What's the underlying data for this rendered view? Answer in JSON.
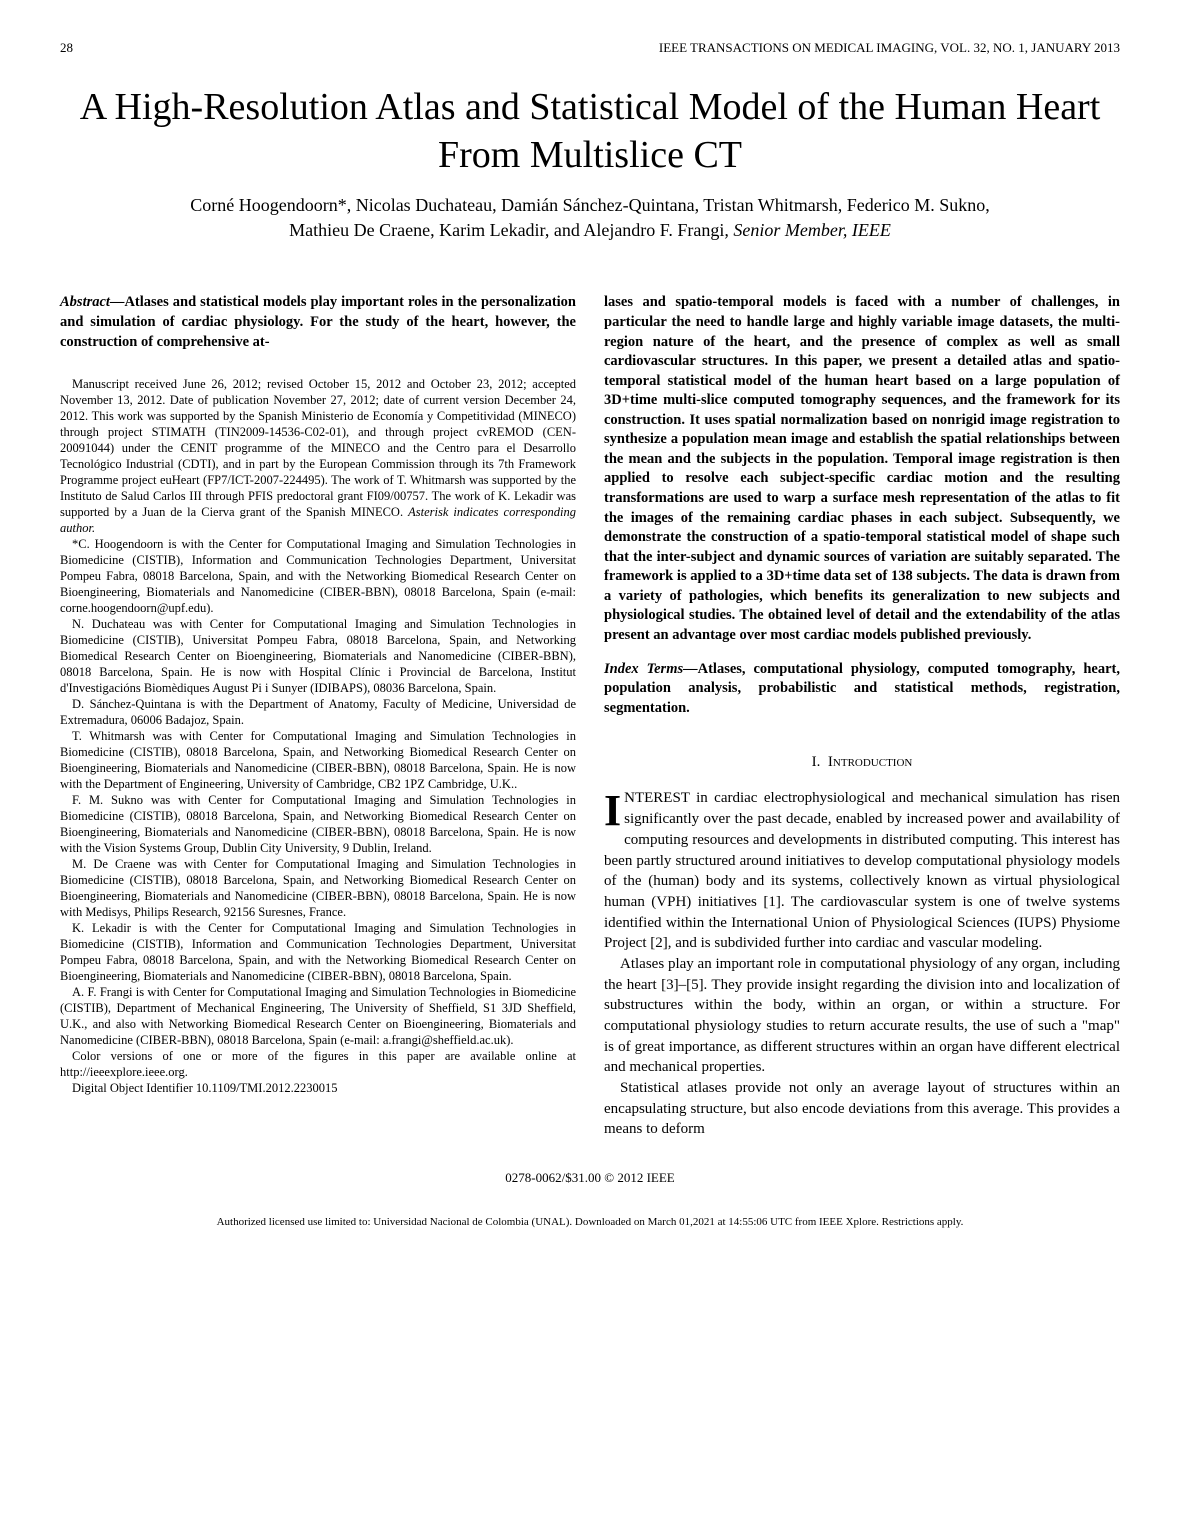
{
  "header": {
    "page_number": "28",
    "journal": "IEEE TRANSACTIONS ON MEDICAL IMAGING, VOL. 32, NO. 1, JANUARY 2013"
  },
  "title": "A High-Resolution Atlas and Statistical Model of the Human Heart From Multislice CT",
  "authors": {
    "line1": "Corné Hoogendoorn*, Nicolas Duchateau, Damián Sánchez-Quintana, Tristan Whitmarsh, Federico M. Sukno,",
    "line2_plain": "Mathieu De Craene, Karim Lekadir, and Alejandro F. Frangi",
    "line2_italic": ", Senior Member, IEEE"
  },
  "abstract": {
    "label": "Abstract—",
    "lead": "Atlases and statistical models play important roles in the personalization and simulation of cardiac physiology. For the study of the heart, however, the construction of comprehensive at-",
    "continuation": "lases and spatio-temporal models is faced with a number of challenges, in particular the need to handle large and highly variable image datasets, the multi-region nature of the heart, and the presence of complex as well as small cardiovascular structures. In this paper, we present a detailed atlas and spatio-temporal statistical model of the human heart based on a large population of 3D+time multi-slice computed tomography sequences, and the framework for its construction. It uses spatial normalization based on nonrigid image registration to synthesize a population mean image and establish the spatial relationships between the mean and the subjects in the population. Temporal image registration is then applied to resolve each subject-specific cardiac motion and the resulting transformations are used to warp a surface mesh representation of the atlas to fit the images of the remaining cardiac phases in each subject. Subsequently, we demonstrate the construction of a spatio-temporal statistical model of shape such that the inter-subject and dynamic sources of variation are suitably separated. The framework is applied to a 3D+time data set of 138 subjects. The data is drawn from a variety of pathologies, which benefits its generalization to new subjects and physiological studies. The obtained level of detail and the extendability of the atlas present an advantage over most cardiac models published previously."
  },
  "index_terms": {
    "label": "Index Terms—",
    "text": "Atlases, computational physiology, computed tomography, heart, population analysis, probabilistic and statistical methods, registration, segmentation."
  },
  "manuscript": {
    "p1": "Manuscript received June 26, 2012; revised October 15, 2012 and October 23, 2012; accepted November 13, 2012. Date of publication November 27, 2012; date of current version December 24, 2012. This work was supported by the Spanish Ministerio de Economía y Competitividad (MINECO) through project STIMATH (TIN2009-14536-C02-01), and through project cvREMOD (CEN-20091044) under the CENIT programme of the MINECO and the Centro para el Desarrollo Tecnológico Industrial (CDTI), and in part by the European Commission through its 7th Framework Programme project euHeart (FP7/ICT-2007-224495). The work of T. Whitmarsh was supported by the Instituto de Salud Carlos III through PFIS predoctoral grant FI09/00757. The work of K. Lekadir was supported by a Juan de la Cierva grant of the Spanish MINECO.",
    "p1_ital": "Asterisk indicates corresponding author.",
    "p2": "*C. Hoogendoorn is with the Center for Computational Imaging and Simulation Technologies in Biomedicine (CISTIB), Information and Communication Technologies Department, Universitat Pompeu Fabra, 08018 Barcelona, Spain, and with the Networking Biomedical Research Center on Bioengineering, Biomaterials and Nanomedicine (CIBER-BBN), 08018 Barcelona, Spain (e-mail: corne.hoogendoorn@upf.edu).",
    "p3": "N. Duchateau was with Center for Computational Imaging and Simulation Technologies in Biomedicine (CISTIB), Universitat Pompeu Fabra, 08018 Barcelona, Spain, and Networking Biomedical Research Center on Bioengineering, Biomaterials and Nanomedicine (CIBER-BBN), 08018 Barcelona, Spain. He is now with Hospital Clínic i Provincial de Barcelona, Institut d'Investigacións Biomèdiques August Pi i Sunyer (IDIBAPS), 08036 Barcelona, Spain.",
    "p4": "D. Sánchez-Quintana is with the Department of Anatomy, Faculty of Medicine, Universidad de Extremadura, 06006 Badajoz, Spain.",
    "p5": "T. Whitmarsh was with Center for Computational Imaging and Simulation Technologies in Biomedicine (CISTIB), 08018 Barcelona, Spain, and Networking Biomedical Research Center on Bioengineering, Biomaterials and Nanomedicine (CIBER-BBN), 08018 Barcelona, Spain. He is now with the Department of Engineering, University of Cambridge, CB2 1PZ Cambridge, U.K..",
    "p6": "F. M. Sukno was with Center for Computational Imaging and Simulation Technologies in Biomedicine (CISTIB), 08018 Barcelona, Spain, and Networking Biomedical Research Center on Bioengineering, Biomaterials and Nanomedicine (CIBER-BBN), 08018 Barcelona, Spain. He is now with the Vision Systems Group, Dublin City University, 9 Dublin, Ireland.",
    "p7": "M. De Craene was with Center for Computational Imaging and Simulation Technologies in Biomedicine (CISTIB), 08018 Barcelona, Spain, and Networking Biomedical Research Center on Bioengineering, Biomaterials and Nanomedicine (CIBER-BBN), 08018 Barcelona, Spain. He is now with Medisys, Philips Research, 92156 Suresnes, France.",
    "p8": "K. Lekadir is with the Center for Computational Imaging and Simulation Technologies in Biomedicine (CISTIB), Information and Communication Technologies Department, Universitat Pompeu Fabra, 08018 Barcelona, Spain, and with the Networking Biomedical Research Center on Bioengineering, Biomaterials and Nanomedicine (CIBER-BBN), 08018 Barcelona, Spain.",
    "p9": "A. F. Frangi is with Center for Computational Imaging and Simulation Technologies in Biomedicine (CISTIB), Department of Mechanical Engineering, The University of Sheffield, S1 3JD Sheffield, U.K., and also with Networking Biomedical Research Center on Bioengineering, Biomaterials and Nanomedicine (CIBER-BBN), 08018 Barcelona, Spain (e-mail: a.frangi@sheffield.ac.uk).",
    "p10": "Color versions of one or more of the figures in this paper are available online at http://ieeexplore.ieee.org.",
    "p11": "Digital Object Identifier 10.1109/TMI.2012.2230015"
  },
  "section": {
    "number": "I.",
    "title": "Introduction"
  },
  "intro": {
    "p1_first": "I",
    "p1_rest": "NTEREST in cardiac electrophysiological and mechanical simulation has risen significantly over the past decade, enabled by increased power and availability of computing resources and developments in distributed computing. This interest has been partly structured around initiatives to develop computational physiology models of the (human) body and its systems, collectively known as virtual physiological human (VPH) initiatives [1]. The cardiovascular system is one of twelve systems identified within the International Union of Physiological Sciences (IUPS) Physiome Project [2], and is subdivided further into cardiac and vascular modeling.",
    "p2": "Atlases play an important role in computational physiology of any organ, including the heart [3]–[5]. They provide insight regarding the division into and localization of substructures within the body, within an organ, or within a structure. For computational physiology studies to return accurate results, the use of such a \"map\" is of great importance, as different structures within an organ have different electrical and mechanical properties.",
    "p3": "Statistical atlases provide not only an average layout of structures within an encapsulating structure, but also encode deviations from this average. This provides a means to deform"
  },
  "footer": {
    "copyright": "0278-0062/$31.00 © 2012 IEEE",
    "license": "Authorized licensed use limited to: Universidad Nacional de Colombia (UNAL). Downloaded on March 01,2021 at 14:55:06 UTC from IEEE Xplore.  Restrictions apply."
  }
}
